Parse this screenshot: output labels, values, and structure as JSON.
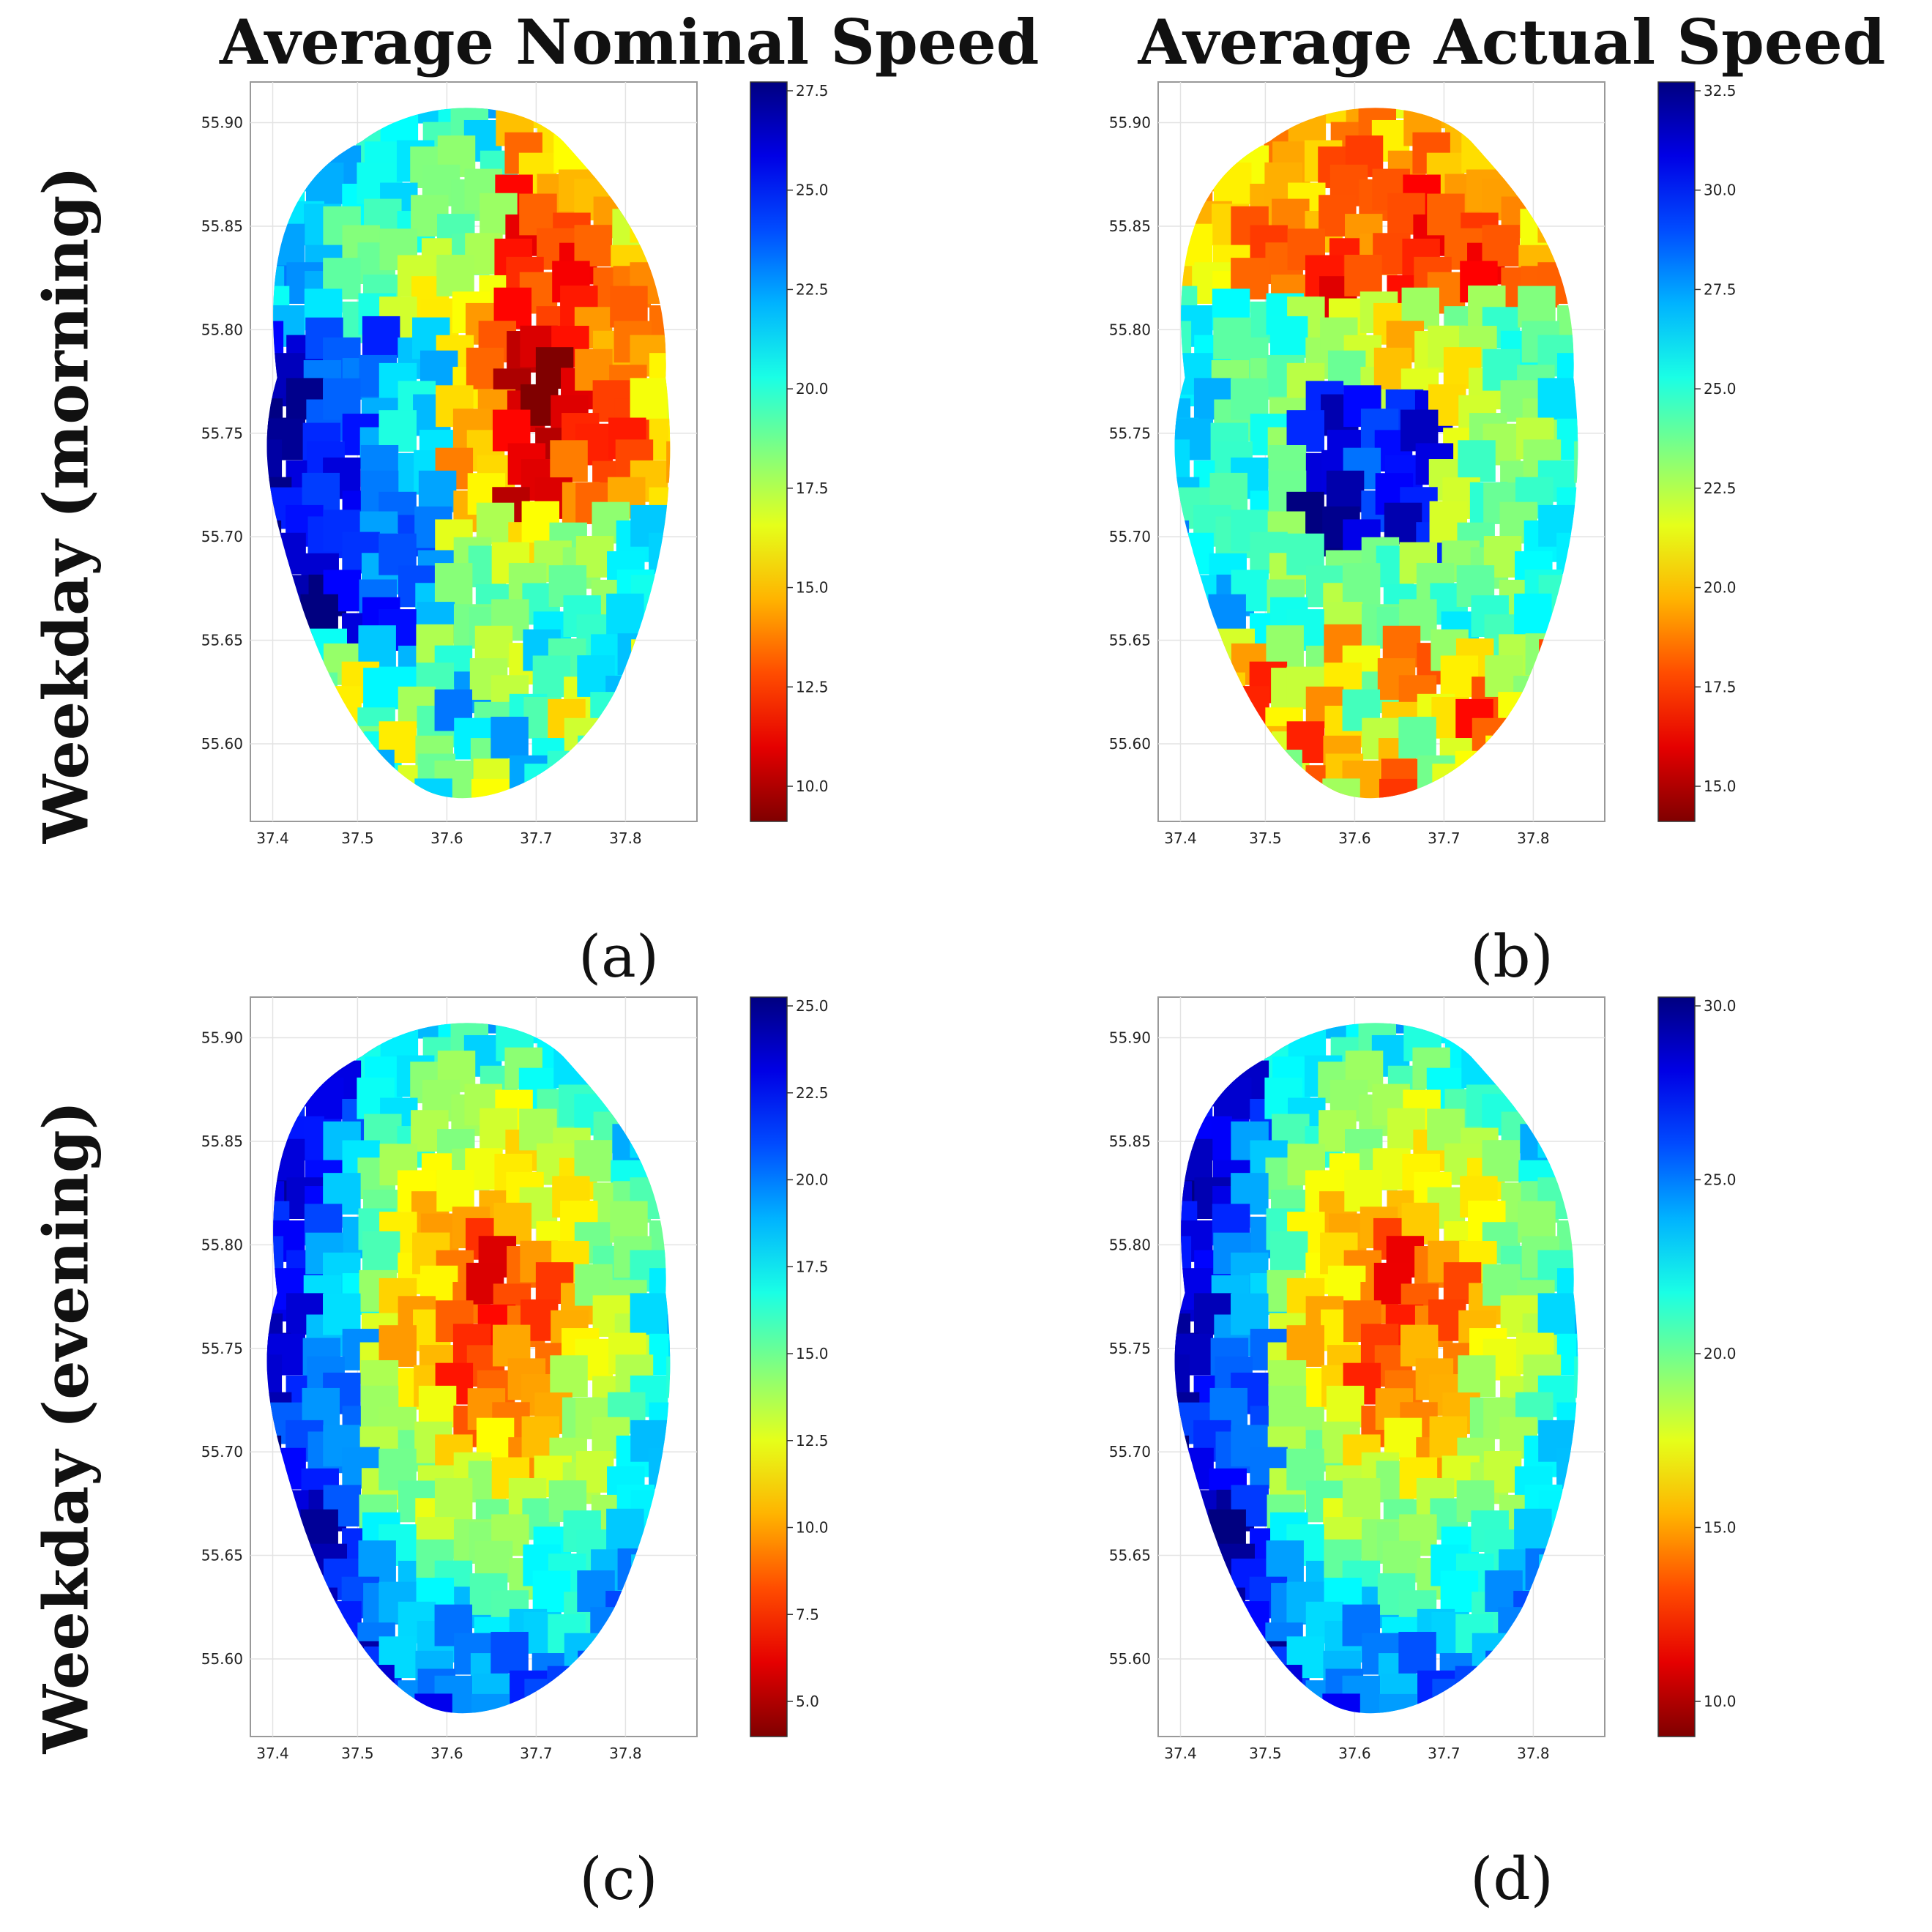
{
  "column_titles": [
    "Average Nominal Speed",
    "Average Actual Speed"
  ],
  "row_titles": [
    "Weekday (morning)",
    "Weekday (evening)"
  ],
  "panels": [
    {
      "label": "(a)",
      "x_ticks": [
        "37.4",
        "37.5",
        "37.6",
        "37.7",
        "37.8"
      ],
      "y_ticks": [
        "55.90",
        "55.85",
        "55.80",
        "55.75",
        "55.70",
        "55.65",
        "55.60"
      ],
      "colorbar_ticks": [
        "27.5",
        "25.0",
        "22.5",
        "20.0",
        "17.5",
        "15.0",
        "12.5",
        "10.0"
      ]
    },
    {
      "label": "(b)",
      "x_ticks": [
        "37.4",
        "37.5",
        "37.6",
        "37.7",
        "37.8"
      ],
      "y_ticks": [
        "55.90",
        "55.85",
        "55.80",
        "55.75",
        "55.70",
        "55.65",
        "55.60"
      ],
      "colorbar_ticks": [
        "32.5",
        "30.0",
        "27.5",
        "25.0",
        "22.5",
        "20.0",
        "17.5",
        "15.0"
      ]
    },
    {
      "label": "(c)",
      "x_ticks": [
        "37.4",
        "37.5",
        "37.6",
        "37.7",
        "37.8"
      ],
      "y_ticks": [
        "55.90",
        "55.85",
        "55.80",
        "55.75",
        "55.70",
        "55.65",
        "55.60"
      ],
      "colorbar_ticks": [
        "25.0",
        "22.5",
        "20.0",
        "17.5",
        "15.0",
        "12.5",
        "10.0",
        "7.5",
        "5.0"
      ]
    },
    {
      "label": "(d)",
      "x_ticks": [
        "37.4",
        "37.5",
        "37.6",
        "37.7",
        "37.8"
      ],
      "y_ticks": [
        "55.90",
        "55.85",
        "55.80",
        "55.75",
        "55.70",
        "55.65",
        "55.60"
      ],
      "colorbar_ticks": [
        "30.0",
        "25.0",
        "20.0",
        "15.0",
        "10.0"
      ]
    }
  ],
  "colors": {
    "jet_high": "#000080",
    "jet_low": "#800000"
  }
}
